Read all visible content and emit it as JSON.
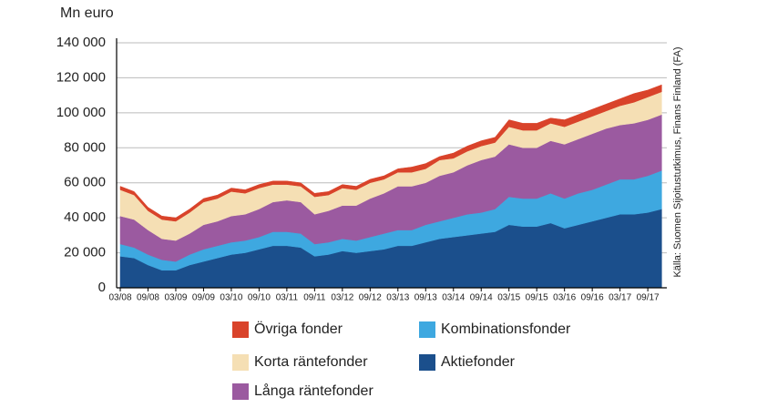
{
  "chart_data": {
    "type": "stacked-area",
    "y_label": "Mn euro",
    "source": "Källa: Suomen Sijoitustutkimus, Finans Finland (FA)",
    "categories": [
      "03/08",
      null,
      "09/08",
      null,
      "03/09",
      null,
      "09/09",
      null,
      "03/10",
      null,
      "09/10",
      null,
      "03/11",
      null,
      "09/11",
      null,
      "03/12",
      null,
      "09/12",
      null,
      "03/13",
      null,
      "09/13",
      null,
      "03/14",
      null,
      "09/14",
      null,
      "03/15",
      null,
      "09/15",
      null,
      "03/16",
      null,
      "09/16",
      null,
      "03/17",
      null,
      "09/17",
      null
    ],
    "series": [
      {
        "name": "Aktiefonder",
        "color": "#1b4f8c",
        "values": [
          18,
          17,
          13,
          10,
          10,
          13,
          15,
          17,
          19,
          20,
          22,
          24,
          24,
          23,
          18,
          19,
          21,
          20,
          21,
          22,
          24,
          24,
          26,
          28,
          29,
          30,
          31,
          32,
          36,
          35,
          35,
          37,
          34,
          36,
          38,
          40,
          42,
          42,
          43,
          45
        ]
      },
      {
        "name": "Kombinationsfonder",
        "color": "#3ea8e0",
        "values": [
          7,
          6,
          6,
          6,
          5,
          6,
          7,
          7,
          7,
          7,
          7,
          8,
          8,
          8,
          7,
          7,
          7,
          7,
          8,
          9,
          9,
          9,
          10,
          10,
          11,
          12,
          12,
          13,
          16,
          16,
          16,
          17,
          17,
          18,
          18,
          19,
          20,
          20,
          21,
          22
        ]
      },
      {
        "name": "Långa räntefonder",
        "color": "#9b5aa0",
        "values": [
          16,
          16,
          14,
          12,
          12,
          12,
          14,
          14,
          15,
          15,
          16,
          17,
          18,
          18,
          17,
          18,
          19,
          20,
          22,
          23,
          25,
          25,
          24,
          26,
          26,
          28,
          30,
          30,
          30,
          29,
          29,
          30,
          31,
          31,
          32,
          32,
          31,
          32,
          32,
          32
        ]
      },
      {
        "name": "Korta räntefonder",
        "color": "#f5dfb4",
        "values": [
          15,
          14,
          11,
          11,
          11,
          12,
          13,
          13,
          14,
          12,
          12,
          10,
          9,
          9,
          10,
          9,
          10,
          9,
          9,
          8,
          8,
          8,
          8,
          9,
          8,
          8,
          8,
          8,
          10,
          10,
          10,
          10,
          10,
          10,
          10,
          10,
          11,
          12,
          13,
          13
        ]
      },
      {
        "name": "Övriga fonder",
        "color": "#d9432a",
        "values": [
          2,
          2,
          2,
          2,
          2,
          2,
          2,
          2,
          2,
          2,
          2,
          2,
          2,
          2,
          2,
          2,
          2,
          2,
          2,
          2,
          2,
          3,
          3,
          2,
          3,
          3,
          3,
          3,
          4,
          4,
          4,
          3,
          4,
          4,
          4,
          4,
          4,
          5,
          4,
          4
        ]
      }
    ],
    "value_scale": 1000,
    "ylim": [
      0,
      140000
    ],
    "yticks": [
      0,
      {
        "value": 20000,
        "label": "20 000"
      },
      {
        "value": 40000,
        "label": "40 000"
      },
      {
        "value": 60000,
        "label": "60 000"
      },
      {
        "value": 80000,
        "label": "80 000"
      },
      {
        "value": 100000,
        "label": "100 000"
      },
      {
        "value": 120000,
        "label": "120 000"
      },
      {
        "value": 140000,
        "label": "140 000"
      }
    ],
    "grid": true
  }
}
